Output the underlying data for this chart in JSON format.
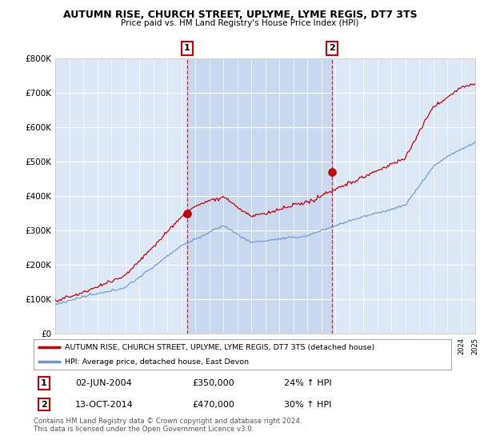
{
  "title": "AUTUMN RISE, CHURCH STREET, UPLYME, LYME REGIS, DT7 3TS",
  "subtitle": "Price paid vs. HM Land Registry's House Price Index (HPI)",
  "legend_line1": "AUTUMN RISE, CHURCH STREET, UPLYME, LYME REGIS, DT7 3TS (detached house)",
  "legend_line2": "HPI: Average price, detached house, East Devon",
  "transaction1_date": "02-JUN-2004",
  "transaction1_price": "£350,000",
  "transaction1_hpi": "24% ↑ HPI",
  "transaction2_date": "13-OCT-2014",
  "transaction2_price": "£470,000",
  "transaction2_hpi": "30% ↑ HPI",
  "footer": "Contains HM Land Registry data © Crown copyright and database right 2024.\nThis data is licensed under the Open Government Licence v3.0.",
  "property_color": "#cc0000",
  "hpi_color": "#6699cc",
  "background_color": "#dce8f5",
  "shade_color": "#c8d8ee",
  "ylim_max": 800000,
  "transaction1_year": 2004.42,
  "transaction2_year": 2014.78,
  "transaction1_value": 350000,
  "transaction2_value": 470000,
  "xmin": 1995,
  "xmax": 2025
}
